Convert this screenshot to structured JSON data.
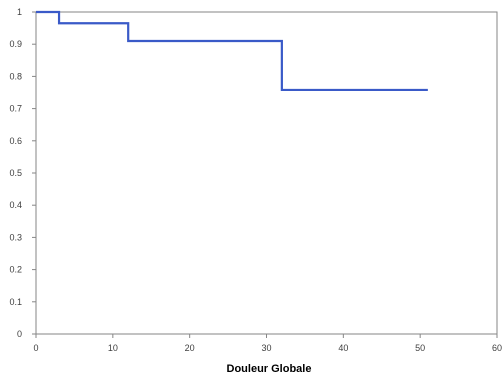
{
  "chart_data": {
    "type": "line",
    "step": true,
    "title": "",
    "xlabel": "Douleur Globale",
    "ylabel": "",
    "xlim": [
      0,
      60
    ],
    "ylim": [
      0,
      1
    ],
    "x_ticks": [
      0,
      10,
      20,
      30,
      40,
      50,
      60
    ],
    "y_ticks": [
      0,
      0.1,
      0.2,
      0.3,
      0.4,
      0.5,
      0.6,
      0.7,
      0.8,
      0.9,
      1
    ],
    "x_tick_labels": [
      "0",
      "10",
      "20",
      "30",
      "40",
      "50",
      "60"
    ],
    "y_tick_labels": [
      "0",
      "0.1",
      "0.2",
      "0.3",
      "0.4",
      "0.5",
      "0.6",
      "0.7",
      "0.8",
      "0.9",
      "1"
    ],
    "grid": false,
    "legend": "none",
    "series": [
      {
        "color": "#3a5ac8",
        "x": [
          0,
          3,
          12,
          32,
          51
        ],
        "y": [
          1.0,
          0.965,
          0.91,
          0.758,
          0.758
        ]
      }
    ]
  }
}
